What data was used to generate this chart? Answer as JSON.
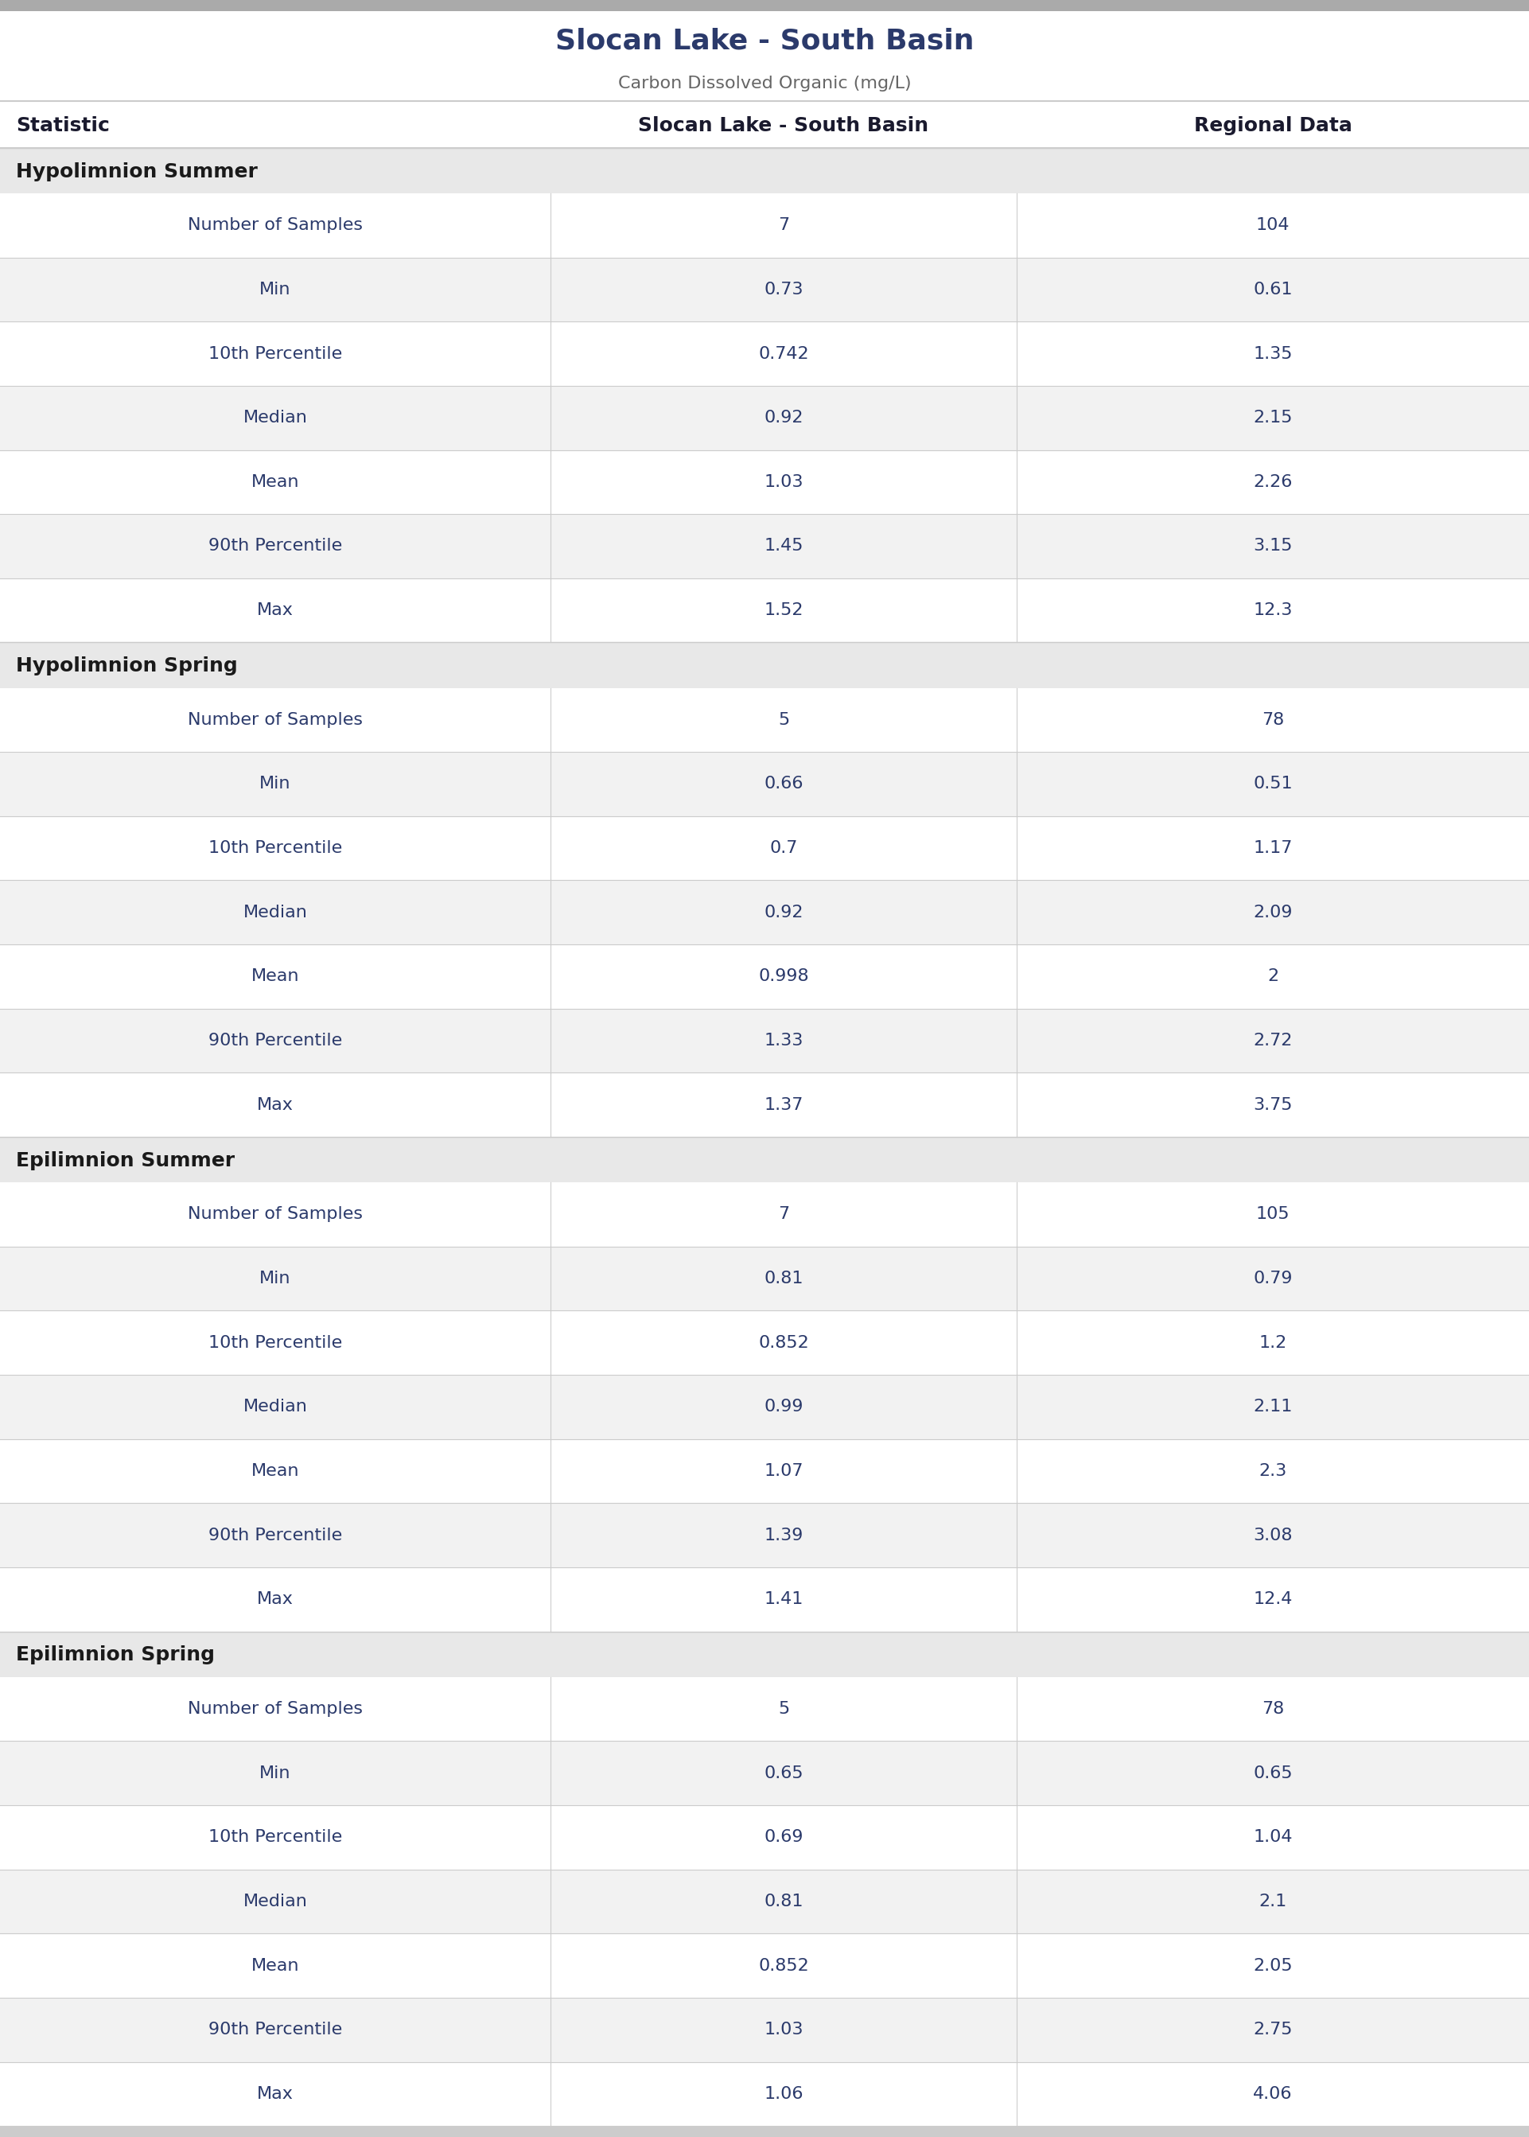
{
  "title": "Slocan Lake - South Basin",
  "subtitle": "Carbon Dissolved Organic (mg/L)",
  "col_headers": [
    "Statistic",
    "Slocan Lake - South Basin",
    "Regional Data"
  ],
  "sections": [
    {
      "header": "Hypolimnion Summer",
      "rows": [
        [
          "Number of Samples",
          "7",
          "104"
        ],
        [
          "Min",
          "0.73",
          "0.61"
        ],
        [
          "10th Percentile",
          "0.742",
          "1.35"
        ],
        [
          "Median",
          "0.92",
          "2.15"
        ],
        [
          "Mean",
          "1.03",
          "2.26"
        ],
        [
          "90th Percentile",
          "1.45",
          "3.15"
        ],
        [
          "Max",
          "1.52",
          "12.3"
        ]
      ]
    },
    {
      "header": "Hypolimnion Spring",
      "rows": [
        [
          "Number of Samples",
          "5",
          "78"
        ],
        [
          "Min",
          "0.66",
          "0.51"
        ],
        [
          "10th Percentile",
          "0.7",
          "1.17"
        ],
        [
          "Median",
          "0.92",
          "2.09"
        ],
        [
          "Mean",
          "0.998",
          "2"
        ],
        [
          "90th Percentile",
          "1.33",
          "2.72"
        ],
        [
          "Max",
          "1.37",
          "3.75"
        ]
      ]
    },
    {
      "header": "Epilimnion Summer",
      "rows": [
        [
          "Number of Samples",
          "7",
          "105"
        ],
        [
          "Min",
          "0.81",
          "0.79"
        ],
        [
          "10th Percentile",
          "0.852",
          "1.2"
        ],
        [
          "Median",
          "0.99",
          "2.11"
        ],
        [
          "Mean",
          "1.07",
          "2.3"
        ],
        [
          "90th Percentile",
          "1.39",
          "3.08"
        ],
        [
          "Max",
          "1.41",
          "12.4"
        ]
      ]
    },
    {
      "header": "Epilimnion Spring",
      "rows": [
        [
          "Number of Samples",
          "5",
          "78"
        ],
        [
          "Min",
          "0.65",
          "0.65"
        ],
        [
          "10th Percentile",
          "0.69",
          "1.04"
        ],
        [
          "Median",
          "0.81",
          "2.1"
        ],
        [
          "Mean",
          "0.852",
          "2.05"
        ],
        [
          "90th Percentile",
          "1.03",
          "2.75"
        ],
        [
          "Max",
          "1.06",
          "4.06"
        ]
      ]
    }
  ],
  "bg_color": "#ffffff",
  "section_bg": "#e8e8e8",
  "alt_row_bg": "#f2f2f2",
  "white_row_bg": "#ffffff",
  "divider_color": "#cccccc",
  "title_color": "#2b3a6b",
  "subtitle_color": "#666666",
  "col_header_color": "#1a1a2e",
  "section_header_color": "#1a1a1a",
  "text_color": "#2b3a6b",
  "top_bar_color": "#aaaaaa",
  "bottom_bar_color": "#cccccc"
}
